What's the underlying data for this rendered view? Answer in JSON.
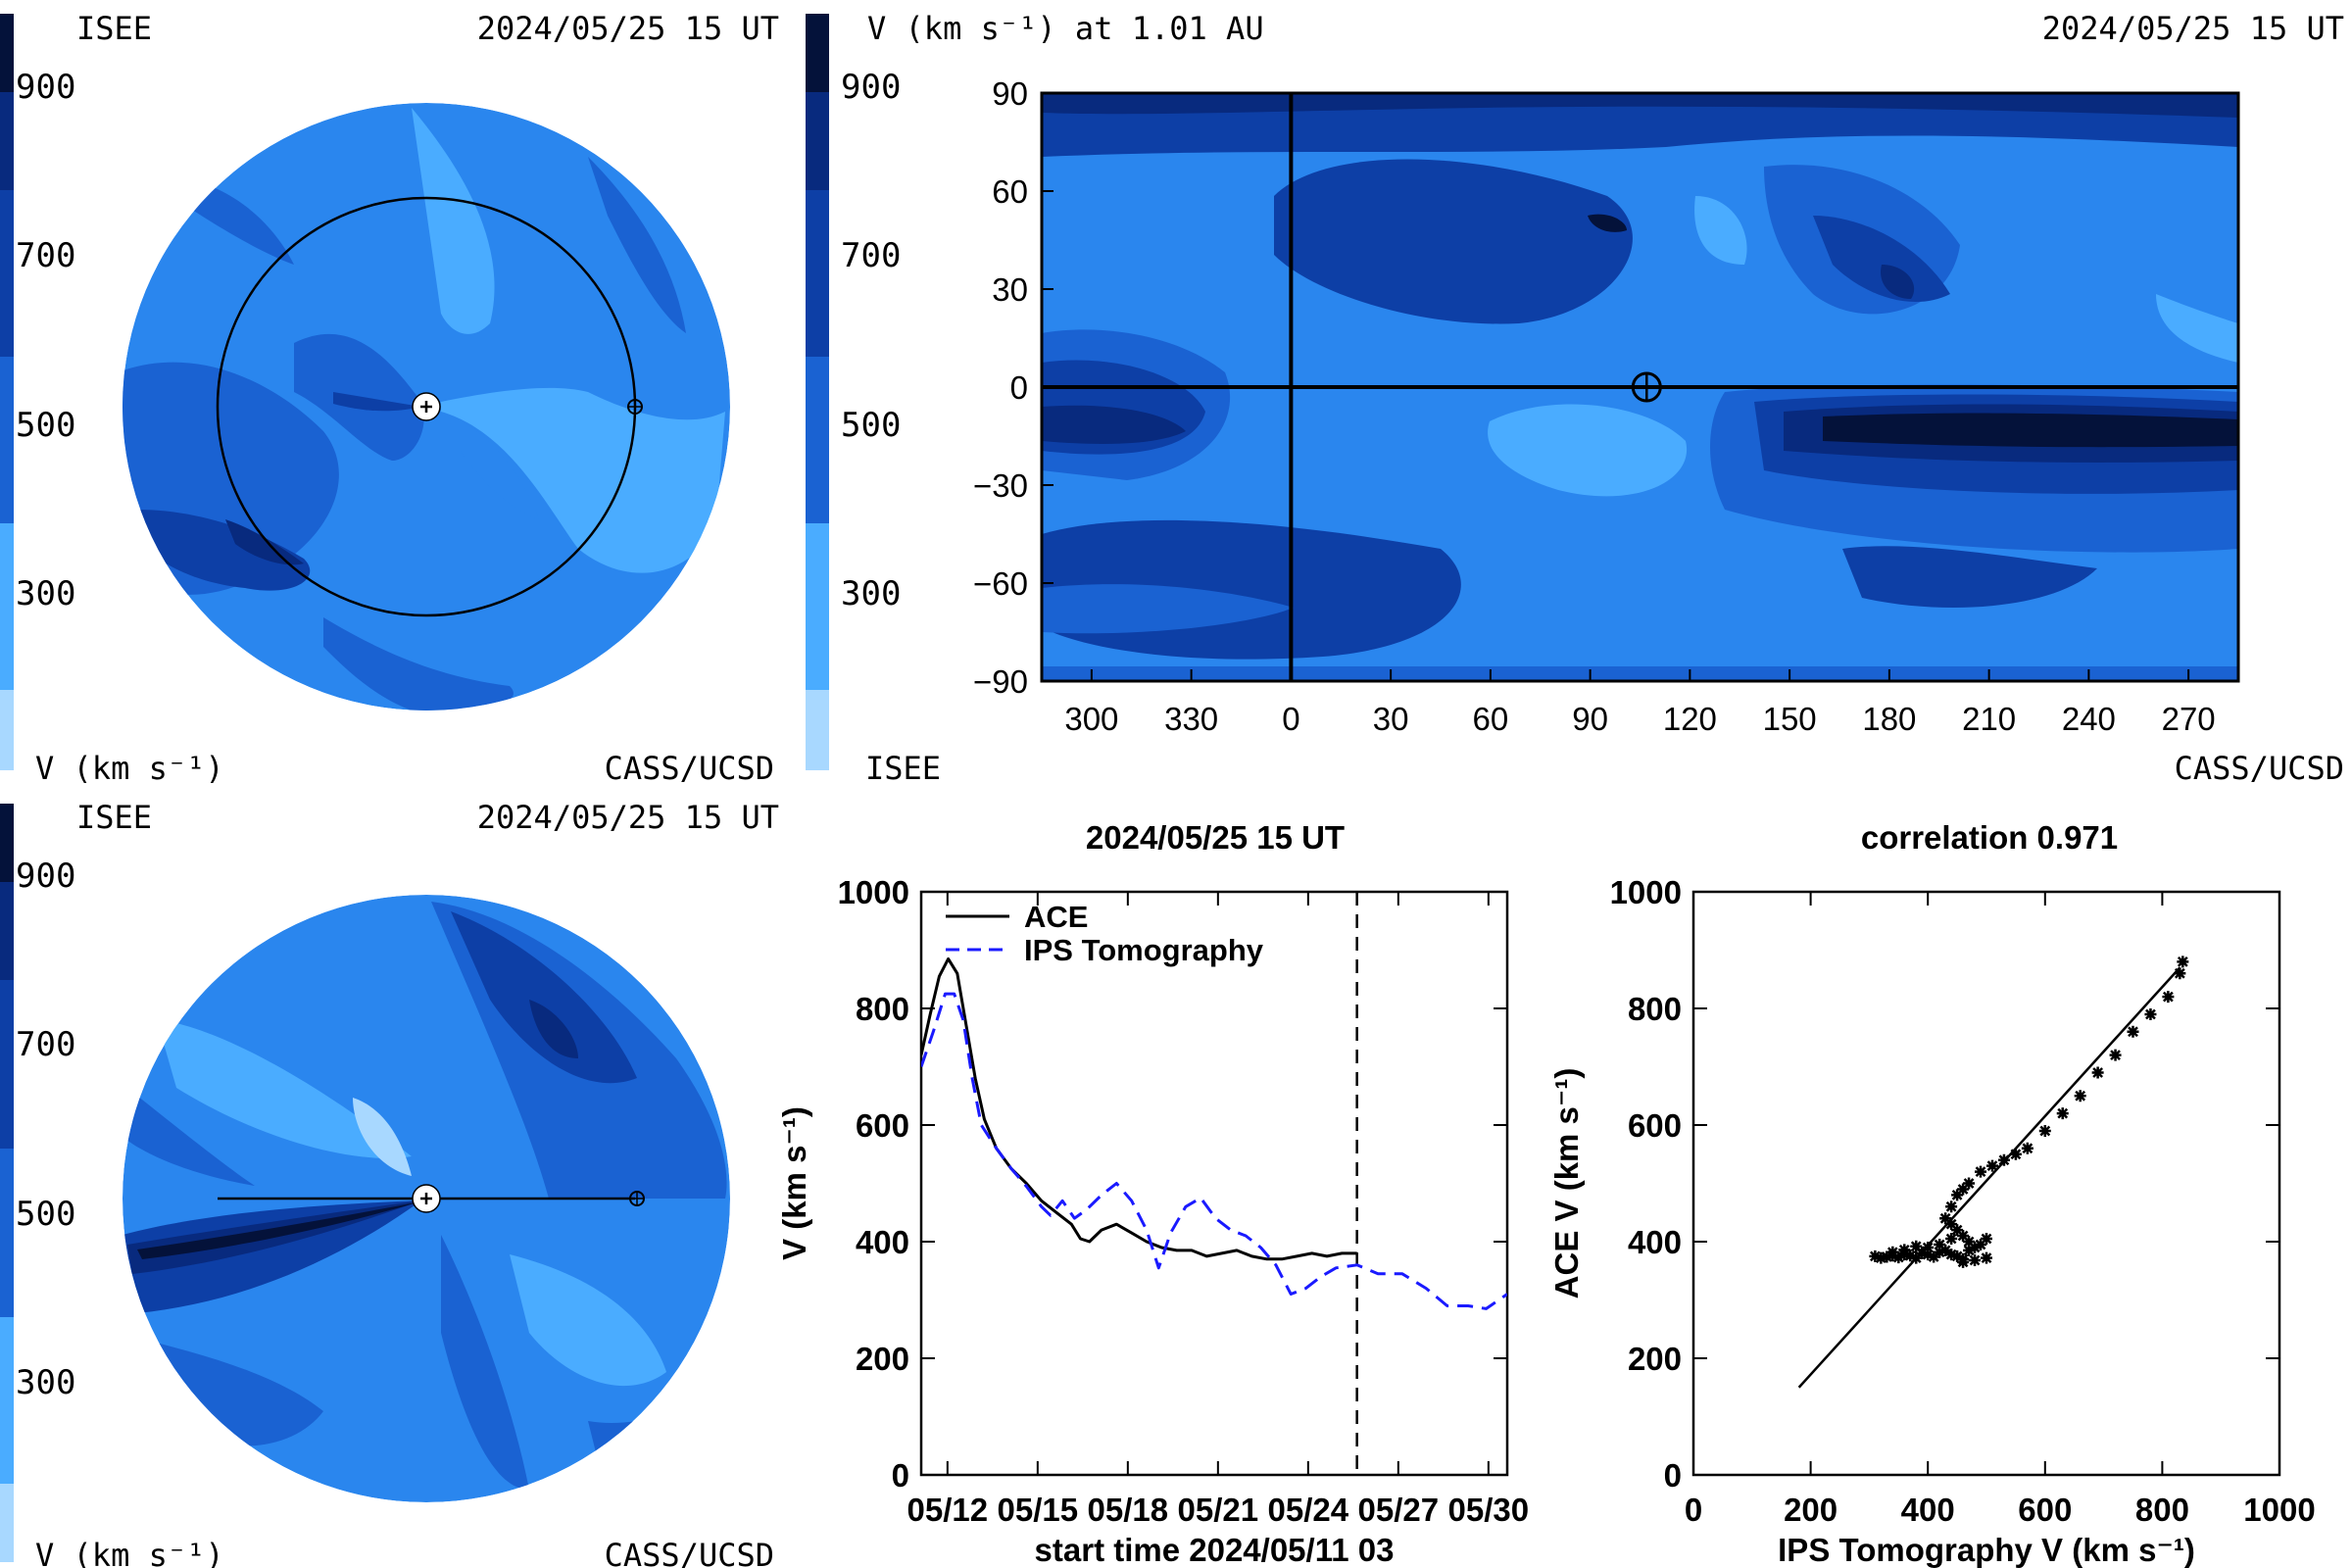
{
  "colors": {
    "lightest": "#a8d8ff",
    "light": "#4aacff",
    "mid": "#2a86ee",
    "midDark": "#1a62d2",
    "dark": "#0d3fa6",
    "darker": "#082a7e",
    "darkest": "#04123a",
    "ips": "#1a1aff",
    "ink": "#000000"
  },
  "panels": {
    "topLeft": {
      "org": "ISEE",
      "datetime": "2024/05/25 15 UT",
      "colorbar_label": "V (km s⁻¹)",
      "credit": "CASS/UCSD",
      "colorbar_ticks": [
        "900",
        "700",
        "500",
        "300"
      ]
    },
    "topRight": {
      "title": "V (km s⁻¹) at 1.01 AU",
      "datetime": "2024/05/25 15 UT",
      "org": "ISEE",
      "credit": "CASS/UCSD",
      "colorbar_ticks": [
        "900",
        "700",
        "500",
        "300"
      ]
    },
    "bottomLeft": {
      "org": "ISEE",
      "datetime": "2024/05/25 15 UT",
      "colorbar_label": "V (km s⁻¹)",
      "credit": "CASS/UCSD",
      "colorbar_ticks": [
        "900",
        "700",
        "500",
        "300"
      ]
    }
  },
  "chart_data": [
    {
      "type": "heatmap",
      "title": "V (km s⁻¹) at 1.01 AU",
      "xticks": [
        "300",
        "330",
        "0",
        "30",
        "60",
        "90",
        "120",
        "150",
        "180",
        "210",
        "240",
        "270"
      ],
      "yticks": [
        "90",
        "60",
        "30",
        "0",
        "−30",
        "−60",
        "−90"
      ],
      "ylim": [
        -90,
        90
      ],
      "earth_marker": {
        "longitude": 107,
        "latitude": 0
      }
    },
    {
      "type": "line",
      "title": "2024/05/25 15 UT",
      "xlabel": "start time 2024/05/11 03",
      "ylabel": "V (km s⁻¹)",
      "ylim": [
        0,
        1000
      ],
      "xlim": [
        0,
        19.5
      ],
      "yticks": [
        "0",
        "200",
        "400",
        "600",
        "800",
        "1000"
      ],
      "xticks": [
        {
          "x": 0.875,
          "label": "05/12"
        },
        {
          "x": 3.875,
          "label": "05/15"
        },
        {
          "x": 6.875,
          "label": "05/18"
        },
        {
          "x": 9.875,
          "label": "05/21"
        },
        {
          "x": 12.875,
          "label": "05/24"
        },
        {
          "x": 15.875,
          "label": "05/27"
        },
        {
          "x": 18.875,
          "label": "05/30"
        }
      ],
      "current_time_x": 14.5,
      "series": [
        {
          "name": "ACE",
          "style": "solid",
          "points": [
            [
              0,
              720
            ],
            [
              0.3,
              790
            ],
            [
              0.6,
              855
            ],
            [
              0.9,
              885
            ],
            [
              1.2,
              860
            ],
            [
              1.5,
              770
            ],
            [
              1.8,
              680
            ],
            [
              2.1,
              610
            ],
            [
              2.5,
              560
            ],
            [
              3,
              525
            ],
            [
              3.5,
              500
            ],
            [
              4,
              470
            ],
            [
              4.5,
              450
            ],
            [
              5,
              430
            ],
            [
              5.3,
              405
            ],
            [
              5.6,
              400
            ],
            [
              6,
              420
            ],
            [
              6.5,
              430
            ],
            [
              7,
              415
            ],
            [
              7.5,
              400
            ],
            [
              8,
              390
            ],
            [
              8.5,
              385
            ],
            [
              9,
              385
            ],
            [
              9.5,
              375
            ],
            [
              10,
              380
            ],
            [
              10.5,
              385
            ],
            [
              11,
              375
            ],
            [
              11.5,
              370
            ],
            [
              12,
              370
            ],
            [
              12.5,
              375
            ],
            [
              13,
              380
            ],
            [
              13.5,
              375
            ],
            [
              14,
              380
            ],
            [
              14.5,
              380
            ]
          ]
        },
        {
          "name": "IPS Tomography",
          "style": "dashed",
          "points": [
            [
              0,
              700
            ],
            [
              0.4,
              760
            ],
            [
              0.8,
              825
            ],
            [
              1.1,
              825
            ],
            [
              1.4,
              780
            ],
            [
              1.7,
              680
            ],
            [
              2,
              600
            ],
            [
              2.5,
              560
            ],
            [
              3,
              525
            ],
            [
              3.5,
              495
            ],
            [
              4,
              460
            ],
            [
              4.3,
              445
            ],
            [
              4.7,
              470
            ],
            [
              5.1,
              440
            ],
            [
              5.5,
              455
            ],
            [
              6,
              480
            ],
            [
              6.5,
              500
            ],
            [
              7,
              470
            ],
            [
              7.5,
              420
            ],
            [
              7.9,
              355
            ],
            [
              8.3,
              415
            ],
            [
              8.8,
              460
            ],
            [
              9.3,
              475
            ],
            [
              9.8,
              440
            ],
            [
              10.3,
              420
            ],
            [
              10.8,
              410
            ],
            [
              11.3,
              390
            ],
            [
              11.8,
              360
            ],
            [
              12.3,
              310
            ],
            [
              12.8,
              320
            ],
            [
              13.3,
              340
            ],
            [
              13.8,
              355
            ],
            [
              14.5,
              360
            ],
            [
              15.2,
              345
            ],
            [
              16,
              345
            ],
            [
              16.8,
              320
            ],
            [
              17.5,
              290
            ],
            [
              18.2,
              290
            ],
            [
              18.8,
              285
            ],
            [
              19.5,
              310
            ]
          ]
        }
      ]
    },
    {
      "type": "scatter",
      "title": "correlation 0.971",
      "xlabel": "IPS Tomography V (km s⁻¹)",
      "ylabel": "ACE V (km s⁻¹)",
      "xlim": [
        0,
        1000
      ],
      "ylim": [
        0,
        1000
      ],
      "xticks": [
        "0",
        "200",
        "400",
        "600",
        "800",
        "1000"
      ],
      "yticks": [
        "0",
        "200",
        "400",
        "600",
        "800",
        "1000"
      ],
      "fit_line": [
        [
          180,
          150
        ],
        [
          830,
          870
        ]
      ],
      "points": [
        [
          310,
          375
        ],
        [
          320,
          372
        ],
        [
          330,
          374
        ],
        [
          340,
          376
        ],
        [
          350,
          373
        ],
        [
          360,
          378
        ],
        [
          370,
          376
        ],
        [
          380,
          372
        ],
        [
          390,
          380
        ],
        [
          400,
          378
        ],
        [
          410,
          374
        ],
        [
          420,
          382
        ],
        [
          430,
          385
        ],
        [
          440,
          378
        ],
        [
          450,
          375
        ],
        [
          460,
          370
        ],
        [
          470,
          385
        ],
        [
          480,
          390
        ],
        [
          490,
          395
        ],
        [
          500,
          405
        ],
        [
          470,
          400
        ],
        [
          460,
          410
        ],
        [
          450,
          420
        ],
        [
          440,
          430
        ],
        [
          430,
          440
        ],
        [
          440,
          460
        ],
        [
          450,
          480
        ],
        [
          460,
          490
        ],
        [
          470,
          500
        ],
        [
          490,
          520
        ],
        [
          510,
          530
        ],
        [
          530,
          540
        ],
        [
          550,
          550
        ],
        [
          570,
          560
        ],
        [
          600,
          590
        ],
        [
          630,
          620
        ],
        [
          660,
          650
        ],
        [
          690,
          690
        ],
        [
          720,
          720
        ],
        [
          750,
          760
        ],
        [
          780,
          790
        ],
        [
          810,
          820
        ],
        [
          830,
          860
        ],
        [
          835,
          880
        ],
        [
          460,
          365
        ],
        [
          480,
          368
        ],
        [
          500,
          372
        ],
        [
          400,
          390
        ],
        [
          380,
          392
        ],
        [
          360,
          386
        ],
        [
          340,
          382
        ],
        [
          420,
          395
        ],
        [
          440,
          405
        ]
      ]
    }
  ]
}
